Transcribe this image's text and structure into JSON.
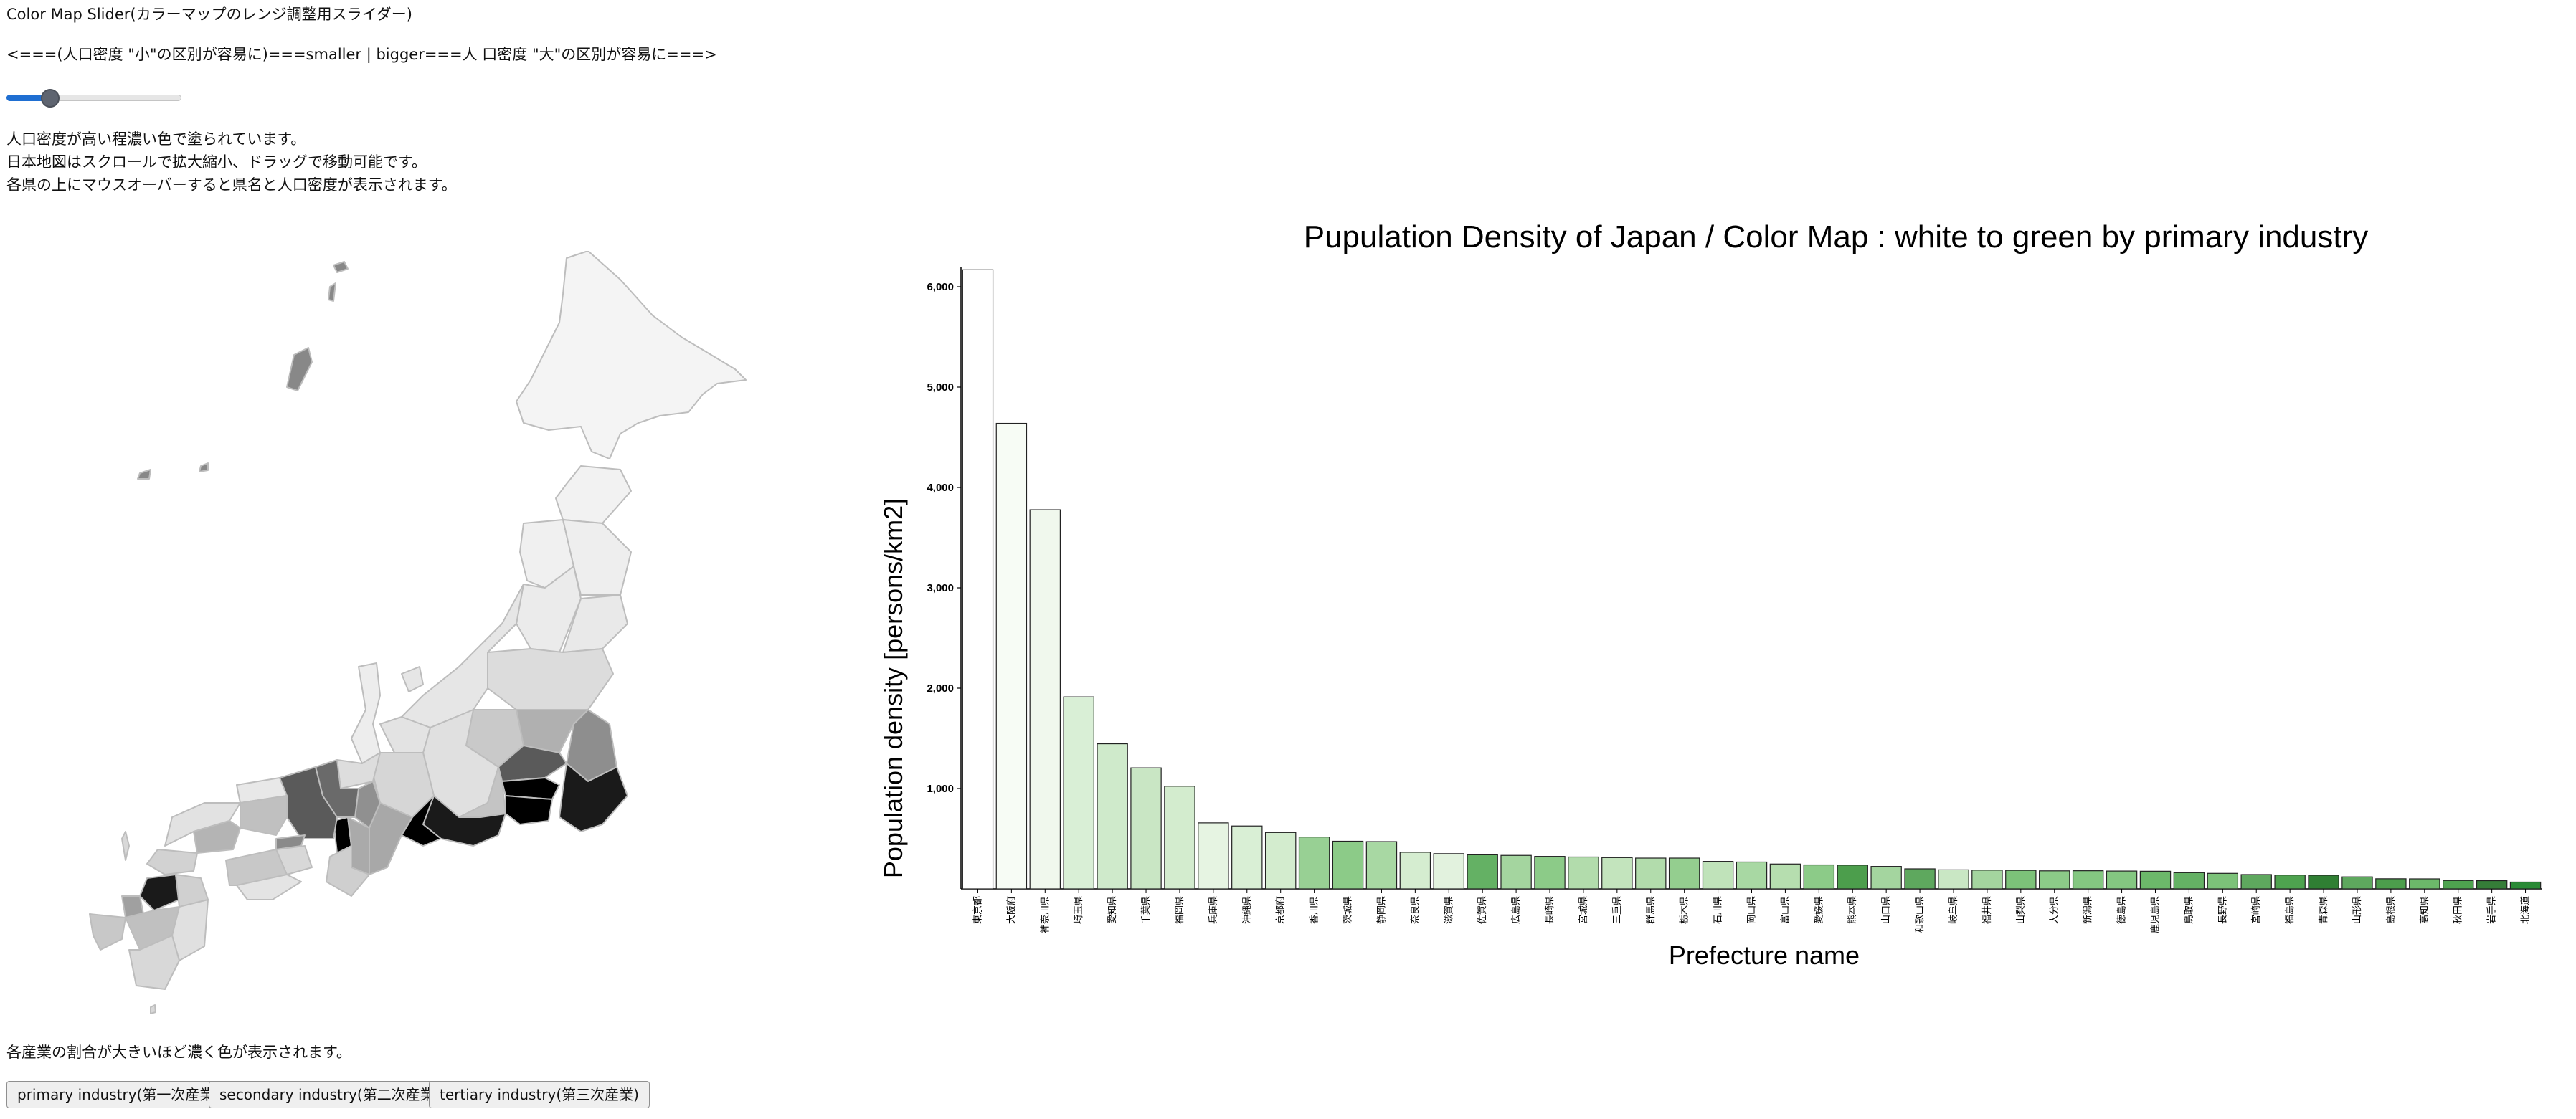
{
  "header": {
    "title": "Color Map Slider(カラーマップのレンジ調整用スライダー)",
    "slider_caption": "<===(人口密度 \"小\"の区別が容易に)===smaller | bigger===人 口密度 \"大\"の区別が容易に===>"
  },
  "slider": {
    "value_fraction": 0.22
  },
  "description": {
    "line1": "人口密度が高い程濃い色で塗られています。",
    "line2": "日本地図はスクロールで拡大縮小、ドラッグで移動可能です。",
    "line3": "各県の上にマウスオーバーすると県名と人口密度が表示されます。"
  },
  "footer": {
    "note": "各産業の割合が大きいほど濃く色が表示されます。",
    "buttons": [
      {
        "label": "primary industry(第一次産業)"
      },
      {
        "label": "secondary industry(第二次産業)"
      },
      {
        "label": "tertiary industry(第三次産業)"
      }
    ]
  },
  "colors": {
    "slider_fill": "#1f6fd2",
    "map_light": "#f4f4f4",
    "map_dark": "#000000",
    "bar_stroke": "#222222"
  },
  "chart_data": {
    "type": "bar",
    "title": "Pupulation Density of Japan / Color Map : white to green by primary industry",
    "xlabel": "Prefecture name",
    "ylabel": "Population density [persons/km2]",
    "ylim": [
      0,
      6200
    ],
    "yticks": [
      1000,
      2000,
      3000,
      4000,
      5000,
      6000
    ],
    "ytick_labels": [
      "1,000",
      "2,000",
      "3,000",
      "4,000",
      "5,000",
      "6,000"
    ],
    "grid": false,
    "categories": [
      "東京都",
      "大阪府",
      "神奈川県",
      "埼玉県",
      "愛知県",
      "千葉県",
      "福岡県",
      "兵庫県",
      "沖縄県",
      "京都府",
      "香川県",
      "茨城県",
      "静岡県",
      "奈良県",
      "滋賀県",
      "佐賀県",
      "広島県",
      "長崎県",
      "宮城県",
      "三重県",
      "群馬県",
      "栃木県",
      "石川県",
      "岡山県",
      "富山県",
      "愛媛県",
      "熊本県",
      "山口県",
      "和歌山県",
      "岐阜県",
      "福井県",
      "山梨県",
      "大分県",
      "新潟県",
      "徳島県",
      "鹿児島県",
      "鳥取県",
      "長野県",
      "宮崎県",
      "福島県",
      "青森県",
      "山形県",
      "島根県",
      "高知県",
      "秋田県",
      "岩手県",
      "北海道"
    ],
    "values": [
      6169,
      4639,
      3778,
      1913,
      1446,
      1206,
      1023,
      658,
      627,
      562,
      517,
      475,
      471,
      365,
      351,
      340,
      334,
      324,
      318,
      312,
      307,
      307,
      274,
      268,
      248,
      239,
      237,
      224,
      200,
      190,
      187,
      185,
      180,
      181,
      178,
      176,
      162,
      155,
      143,
      138,
      136,
      120,
      101,
      100,
      84,
      82,
      68
    ],
    "bar_colors": [
      "#ffffff",
      "#f7fcf5",
      "#f0f8ed",
      "#d9efd6",
      "#cfeacb",
      "#c9e6c4",
      "#d3ecce",
      "#e6f4e2",
      "#d9efd5",
      "#d3ecce",
      "#98d094",
      "#8ccb88",
      "#a8d8a3",
      "#d5edd0",
      "#e2f2de",
      "#64b164",
      "#a4d59f",
      "#8ccb88",
      "#b2dcac",
      "#c3e4bd",
      "#b2dcac",
      "#94ce8f",
      "#c0e3ba",
      "#a8d8a3",
      "#b6deaf",
      "#8ccb88",
      "#4c9e4c",
      "#a4d59f",
      "#5ea85e",
      "#c9e7c4",
      "#a4d59f",
      "#7cc279",
      "#8ccb88",
      "#84c781",
      "#84c781",
      "#6cb86a",
      "#64b164",
      "#7cc279",
      "#5ea85e",
      "#4ea34f",
      "#2f7f33",
      "#5ea85e",
      "#4c9e4c",
      "#6cb86a",
      "#4ea34f",
      "#357d38",
      "#2a8a36"
    ]
  }
}
